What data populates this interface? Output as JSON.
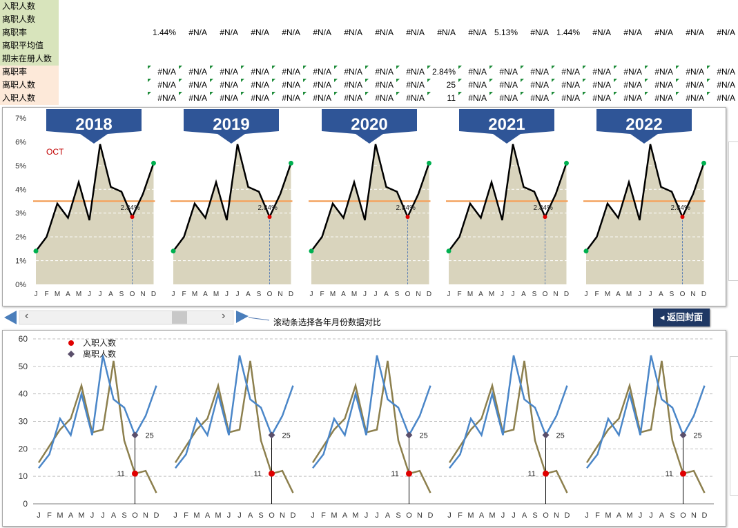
{
  "table": {
    "rows": [
      {
        "label": "入职人数",
        "style": "green",
        "values": []
      },
      {
        "label": "离职人数",
        "style": "green",
        "values": []
      },
      {
        "label": "离职率",
        "style": "green",
        "values": [
          "1.44%",
          "#N/A",
          "#N/A",
          "#N/A",
          "#N/A",
          "#N/A",
          "#N/A",
          "#N/A",
          "#N/A",
          "#N/A",
          "#N/A",
          "5.13%",
          "#N/A",
          "1.44%",
          "#N/A",
          "#N/A",
          "#N/A",
          "#N/A",
          "#N/A"
        ]
      },
      {
        "label": "离职平均值",
        "style": "green",
        "values": []
      },
      {
        "label": "期末在册人数",
        "style": "green",
        "values": []
      },
      {
        "label": "离职率",
        "style": "peach",
        "values": [
          "#N/A",
          "#N/A",
          "#N/A",
          "#N/A",
          "#N/A",
          "#N/A",
          "#N/A",
          "#N/A",
          "#N/A",
          "2.84%",
          "#N/A",
          "#N/A",
          "#N/A",
          "#N/A",
          "#N/A",
          "#N/A",
          "#N/A",
          "#N/A",
          "#N/A"
        ]
      },
      {
        "label": "离职人数",
        "style": "peach",
        "values": [
          "#N/A",
          "#N/A",
          "#N/A",
          "#N/A",
          "#N/A",
          "#N/A",
          "#N/A",
          "#N/A",
          "#N/A",
          "25",
          "#N/A",
          "#N/A",
          "#N/A",
          "#N/A",
          "#N/A",
          "#N/A",
          "#N/A",
          "#N/A",
          "#N/A"
        ]
      },
      {
        "label": "入职人数",
        "style": "peach",
        "values": [
          "#N/A",
          "#N/A",
          "#N/A",
          "#N/A",
          "#N/A",
          "#N/A",
          "#N/A",
          "#N/A",
          "#N/A",
          "11",
          "#N/A",
          "#N/A",
          "#N/A",
          "#N/A",
          "#N/A",
          "#N/A",
          "#N/A",
          "#N/A",
          "#N/A"
        ]
      }
    ]
  },
  "years": [
    "2018",
    "2019",
    "2020",
    "2021",
    "2022"
  ],
  "months": [
    "J",
    "F",
    "M",
    "A",
    "M",
    "J",
    "J",
    "A",
    "S",
    "O",
    "N",
    "D"
  ],
  "colors": {
    "banner": "#2f5597",
    "area": "#d9d4bd",
    "line": "#000000",
    "avg": "#f4a460",
    "hire": "#4a86c8",
    "leave": "#8c7f4d",
    "point_red": "#e00000",
    "point_green": "#00b050",
    "point_gray": "#5a4f6b"
  },
  "chart_data": [
    {
      "type": "area",
      "title": "",
      "panels": [
        "2018",
        "2019",
        "2020",
        "2021",
        "2022"
      ],
      "categories": [
        "J",
        "F",
        "M",
        "A",
        "M",
        "J",
        "J",
        "A",
        "S",
        "O",
        "N",
        "D"
      ],
      "ylim": [
        0,
        7
      ],
      "y_tick_labels": [
        "0%",
        "1%",
        "2%",
        "3%",
        "4%",
        "5%",
        "6%",
        "7%"
      ],
      "series": [
        {
          "values": [
            1.4,
            2.0,
            3.4,
            2.8,
            4.3,
            2.7,
            5.9,
            4.1,
            3.9,
            2.84,
            3.8,
            5.1
          ]
        },
        {
          "values": [
            3.5,
            3.5,
            3.5,
            3.5,
            3.5,
            3.5,
            3.5,
            3.5,
            3.5,
            3.5,
            3.5,
            3.5
          ]
        }
      ],
      "annotations": [
        {
          "text": "OCT",
          "panel": "2018"
        },
        {
          "text": "2.84%",
          "month": "O"
        }
      ],
      "grid": true
    },
    {
      "type": "line",
      "title": "",
      "panels": 5,
      "categories": [
        "J",
        "F",
        "M",
        "A",
        "M",
        "J",
        "J",
        "A",
        "S",
        "O",
        "N",
        "D"
      ],
      "ylim": [
        0,
        60
      ],
      "y_tick_labels": [
        "0",
        "10",
        "20",
        "30",
        "40",
        "50",
        "60"
      ],
      "series": [
        {
          "name": "入职人数",
          "values": [
            15,
            21,
            27,
            31,
            43,
            26,
            27,
            52,
            23,
            11,
            12,
            4
          ]
        },
        {
          "name": "离职人数",
          "values": [
            13,
            18,
            31,
            25,
            40,
            25,
            54,
            38,
            35,
            25,
            32,
            43
          ]
        }
      ],
      "annotations": [
        {
          "text": "25",
          "month": "O"
        },
        {
          "text": "11",
          "month": "O"
        }
      ],
      "legend": "top-left",
      "grid": true
    }
  ],
  "scroll": {
    "left": "‹",
    "right": "›"
  },
  "hint_text": "滚动条选择各年月份数据对比",
  "back_button": "返回封面"
}
